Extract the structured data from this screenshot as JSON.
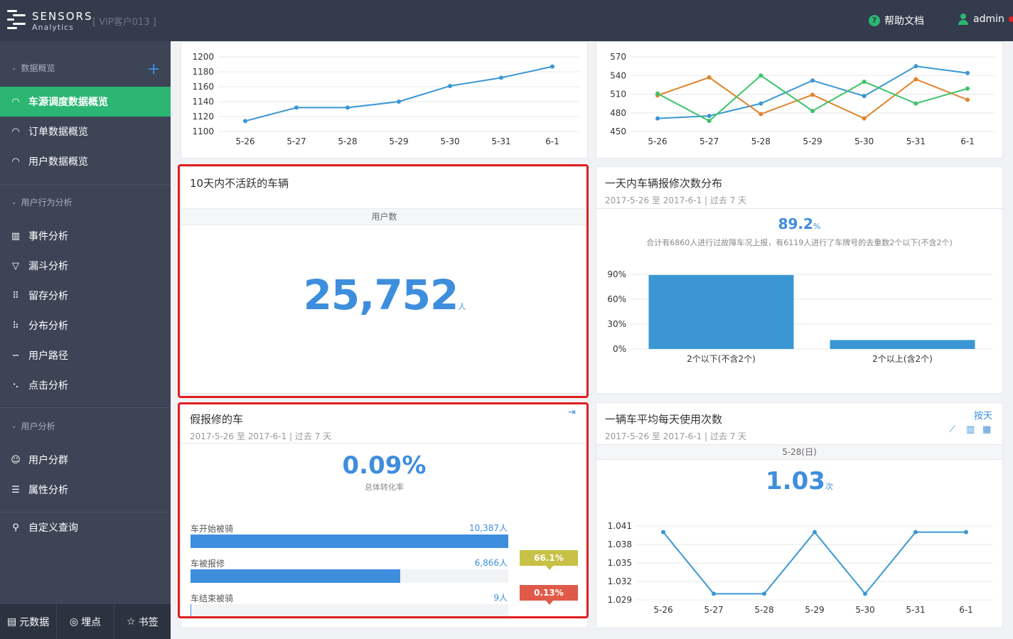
{
  "header": {
    "logo_line1": "SENSORS",
    "logo_line2": "Analytics",
    "customer": "[ VIP客户013 ]",
    "help": "帮助文档",
    "user": "admin"
  },
  "sidebar": {
    "section1": "数据概览",
    "items1": [
      "车源调度数据概览",
      "订单数据概览",
      "用户数据概览"
    ],
    "section2": "用户行为分析",
    "items2": [
      "事件分析",
      "漏斗分析",
      "留存分析",
      "分布分析",
      "用户路径",
      "点击分析"
    ],
    "section3": "用户分析",
    "items3": [
      "用户分群",
      "属性分析"
    ],
    "item_custom": "自定义查询",
    "bottom": [
      "元数据",
      "埋点",
      "书签"
    ]
  },
  "cards": {
    "line_top_left": {
      "chart_data": {
        "type": "line",
        "categories": [
          "5-26",
          "5-27",
          "5-28",
          "5-29",
          "5-30",
          "5-31",
          "6-1"
        ],
        "values": [
          1114,
          1132,
          1132,
          1140,
          1161,
          1172,
          1187
        ],
        "yticks": [
          1100,
          1120,
          1140,
          1160,
          1180,
          1200
        ],
        "ylim": [
          1100,
          1200
        ],
        "color": "#3a97d4"
      }
    },
    "line_top_right": {
      "chart_data": {
        "type": "line",
        "categories": [
          "5-26",
          "5-27",
          "5-28",
          "5-29",
          "5-30",
          "5-31",
          "6-1"
        ],
        "yticks": [
          450,
          480,
          510,
          540,
          570
        ],
        "ylim": [
          450,
          570
        ],
        "series": [
          {
            "color": "#3a97d4",
            "values": [
              471,
              475,
              495,
              532,
              507,
              555,
              544
            ]
          },
          {
            "color": "#e0832c",
            "values": [
              508,
              537,
              478,
              509,
              471,
              534,
              501
            ]
          },
          {
            "color": "#3cc466",
            "values": [
              511,
              467,
              540,
              483,
              530,
              495,
              519
            ]
          }
        ]
      }
    },
    "inactive": {
      "title": "10天内不活跃的车辆",
      "column": "用户数",
      "value": "25,752",
      "unit": "人"
    },
    "repair_dist": {
      "title": "一天内车辆报修次数分布",
      "sub": "2017-5-26 至 2017-6-1 | 过去 7 天",
      "percent": "89.2",
      "percent_unit": "%",
      "desc": "合计有6860人进行过故障车况上报，有6119人进行了车牌号的去重数2个以下(不含2个)",
      "chart_data": {
        "type": "bar",
        "categories": [
          "2个以下(不含2个)",
          "2个以上(含2个)"
        ],
        "values": [
          89.2,
          10.8
        ],
        "yticks": [
          "0%",
          "30%",
          "60%",
          "90%"
        ],
        "ylim": [
          0,
          90
        ],
        "color": "#3a97d4"
      }
    },
    "fake_repair": {
      "title": "假报修的车",
      "sub": "2017-5-26 至 2017-6-1 | 过去 7 天",
      "rate": "0.09%",
      "rate_label": "总体转化率",
      "steps": [
        {
          "label": "车开始被骑",
          "count": "10,387人",
          "fraction": 1.0
        },
        {
          "label": "车被报修",
          "count": "6,866人",
          "fraction": 0.661
        },
        {
          "label": "车结束被骑",
          "count": "9人",
          "fraction": 0.0013
        }
      ],
      "conversions": [
        "66.1%",
        "0.13%"
      ]
    },
    "avg_usage": {
      "title": "一辆车平均每天使用次数",
      "sub": "2017-5-26 至 2017-6-1 | 过去 7 天",
      "by_day": "按天",
      "date": "5-28(日)",
      "value": "1.03",
      "unit": "次",
      "chart_data": {
        "type": "line",
        "categories": [
          "5-26",
          "5-27",
          "5-28",
          "5-29",
          "5-30",
          "5-31",
          "6-1"
        ],
        "values": [
          1.04,
          1.03,
          1.03,
          1.04,
          1.03,
          1.04,
          1.04
        ],
        "yticks": [
          "1.029",
          "1.032",
          "1.035",
          "1.038",
          "1.041"
        ],
        "ylim": [
          1.029,
          1.041
        ],
        "color": "#3a97d4"
      }
    }
  }
}
